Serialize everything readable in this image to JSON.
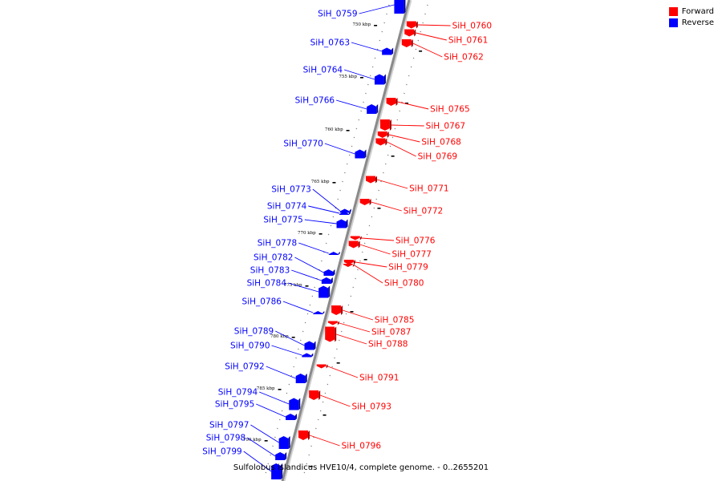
{
  "legend": {
    "forward": {
      "label": "Forward",
      "color": "#ff0000"
    },
    "reverse": {
      "label": "Reverse",
      "color": "#0000ff"
    }
  },
  "caption": "Sulfolobus islandicus HVE10/4, complete genome. - 0..2655201",
  "kbp_marks": [
    "750 kbp",
    "755 kbp",
    "760 kbp",
    "765 kbp",
    "770 kbp",
    "775 kbp",
    "780 kbp",
    "785 kbp",
    "790 kbp"
  ],
  "genes": [
    {
      "name": "SiH_0759",
      "strand": "reverse"
    },
    {
      "name": "SiH_0760",
      "strand": "forward"
    },
    {
      "name": "SiH_0761",
      "strand": "forward"
    },
    {
      "name": "SiH_0762",
      "strand": "forward"
    },
    {
      "name": "SiH_0763",
      "strand": "reverse"
    },
    {
      "name": "SiH_0764",
      "strand": "reverse"
    },
    {
      "name": "SiH_0765",
      "strand": "forward"
    },
    {
      "name": "SiH_0766",
      "strand": "reverse"
    },
    {
      "name": "SiH_0767",
      "strand": "forward"
    },
    {
      "name": "SiH_0768",
      "strand": "forward"
    },
    {
      "name": "SiH_0769",
      "strand": "forward"
    },
    {
      "name": "SiH_0770",
      "strand": "reverse"
    },
    {
      "name": "SiH_0771",
      "strand": "forward"
    },
    {
      "name": "SiH_0772",
      "strand": "forward"
    },
    {
      "name": "SiH_0773",
      "strand": "reverse"
    },
    {
      "name": "SiH_0774",
      "strand": "reverse"
    },
    {
      "name": "SiH_0775",
      "strand": "reverse"
    },
    {
      "name": "SiH_0776",
      "strand": "forward"
    },
    {
      "name": "SiH_0777",
      "strand": "forward"
    },
    {
      "name": "SiH_0778",
      "strand": "reverse"
    },
    {
      "name": "SiH_0779",
      "strand": "forward"
    },
    {
      "name": "SiH_0780",
      "strand": "forward"
    },
    {
      "name": "SiH_0782",
      "strand": "reverse"
    },
    {
      "name": "SiH_0783",
      "strand": "reverse"
    },
    {
      "name": "SiH_0784",
      "strand": "reverse"
    },
    {
      "name": "SiH_0785",
      "strand": "forward"
    },
    {
      "name": "SiH_0786",
      "strand": "reverse"
    },
    {
      "name": "SiH_0787",
      "strand": "forward"
    },
    {
      "name": "SiH_0788",
      "strand": "forward"
    },
    {
      "name": "SiH_0789",
      "strand": "reverse"
    },
    {
      "name": "SiH_0790",
      "strand": "reverse"
    },
    {
      "name": "SiH_0791",
      "strand": "forward"
    },
    {
      "name": "SiH_0792",
      "strand": "reverse"
    },
    {
      "name": "SiH_0793",
      "strand": "forward"
    },
    {
      "name": "SiH_0794",
      "strand": "reverse"
    },
    {
      "name": "SiH_0795",
      "strand": "reverse"
    },
    {
      "name": "SiH_0796",
      "strand": "forward"
    },
    {
      "name": "SiH_0797",
      "strand": "reverse"
    },
    {
      "name": "SiH_0798",
      "strand": "reverse"
    },
    {
      "name": "SiH_0799",
      "strand": "reverse"
    }
  ]
}
